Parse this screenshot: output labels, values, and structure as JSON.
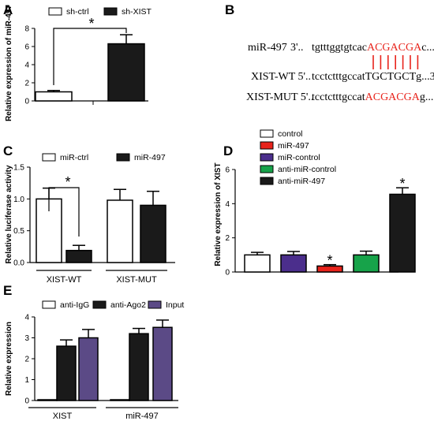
{
  "panels": {
    "A": "A",
    "B": "B",
    "C": "C",
    "D": "D",
    "E": "E"
  },
  "sequence": {
    "rows": [
      {
        "label": "miR-497",
        "prefix": "3'..",
        "seq_black": "tgtttggtgtcac",
        "seq_red": "ACGACGA",
        "seq_tail": "c...5'"
      },
      {
        "label": "XIST-WT 5'..",
        "prefix": "",
        "seq_black": "tcctctttgccat",
        "seq_red": "",
        "seq_tail": "TGCTGCTg...3'"
      },
      {
        "label": "XIST-MUT 5'..",
        "prefix": "",
        "seq_black": "tcctctttgccat",
        "seq_red": "ACGACGA",
        "seq_tail": "g...3'"
      }
    ],
    "pairing_lines": 7,
    "colors": {
      "mutated": "#e8231b",
      "pairing": "#e8231b"
    }
  },
  "chart_data": [
    {
      "panel": "A",
      "type": "bar",
      "categories": [
        "sh-ctrl",
        "sh-XIST"
      ],
      "values": [
        1.0,
        6.3
      ],
      "errors": [
        0.15,
        1.0
      ],
      "colors": [
        "#ffffff",
        "#1a1a1a"
      ],
      "legend": [
        "sh-ctrl",
        "sh-XIST"
      ],
      "legend_placement": "top",
      "ylabel": "Relative expression of miR-497",
      "xlabel": "",
      "ylim": [
        0,
        8
      ],
      "yticks": [
        "0",
        "2",
        "4",
        "6",
        "8"
      ],
      "annotation": "*",
      "grid": false
    },
    {
      "panel": "C",
      "type": "bar",
      "groups": [
        "XIST-WT",
        "XIST-MUT"
      ],
      "series": [
        {
          "name": "miR-ctrl",
          "values": [
            1.0,
            0.98
          ],
          "errors": [
            0.17,
            0.17
          ],
          "color": "#ffffff"
        },
        {
          "name": "miR-497",
          "values": [
            0.19,
            0.9
          ],
          "errors": [
            0.08,
            0.22
          ],
          "color": "#1a1a1a"
        }
      ],
      "legend_placement": "top",
      "ylabel": "Relative luciferase activity",
      "xlabel": "",
      "ylim": [
        0,
        1.5
      ],
      "yticks": [
        "0.0",
        "0.5",
        "1.0",
        "1.5"
      ],
      "annotation": "*",
      "grid": false
    },
    {
      "panel": "D",
      "type": "bar",
      "categories": [
        "control",
        "miR-497",
        "miR-control",
        "anti-miR-control",
        "anti-miR-497"
      ],
      "values": [
        1.0,
        1.0,
        0.35,
        1.0,
        4.55
      ],
      "errors": [
        0.15,
        0.2,
        0.08,
        0.22,
        0.38
      ],
      "colors": [
        "#ffffff",
        "#4b2e8c",
        "#e8231b",
        "#17a34a",
        "#1a1a1a"
      ],
      "legend": [
        {
          "name": "control",
          "color": "#ffffff"
        },
        {
          "name": "miR-497",
          "color": "#e8231b"
        },
        {
          "name": "miR-control",
          "color": "#4b2e8c"
        },
        {
          "name": "anti-miR-control",
          "color": "#17a34a"
        },
        {
          "name": "anti-miR-497",
          "color": "#1a1a1a"
        }
      ],
      "legend_placement": "top",
      "ylabel": "Relative expression of XIST",
      "xlabel": "",
      "ylim": [
        0,
        6
      ],
      "yticks": [
        "0",
        "2",
        "4",
        "6"
      ],
      "annotations": [
        "*",
        "*"
      ],
      "grid": false
    },
    {
      "panel": "E",
      "type": "bar",
      "groups": [
        "XIST",
        "miR-497"
      ],
      "series": [
        {
          "name": "anti-IgG",
          "values": [
            0.0,
            0.0
          ],
          "errors": [
            0,
            0
          ],
          "color": "#ffffff"
        },
        {
          "name": "anti-Ago2",
          "values": [
            2.6,
            3.2
          ],
          "errors": [
            0.3,
            0.25
          ],
          "color": "#1a1a1a"
        },
        {
          "name": "Input",
          "values": [
            3.0,
            3.5
          ],
          "errors": [
            0.4,
            0.35
          ],
          "color": "#5b4a86"
        }
      ],
      "legend_placement": "top",
      "ylabel": "Relative expression",
      "xlabel": "",
      "ylim": [
        0,
        4
      ],
      "yticks": [
        "0",
        "1",
        "2",
        "3",
        "4"
      ],
      "grid": false
    }
  ]
}
